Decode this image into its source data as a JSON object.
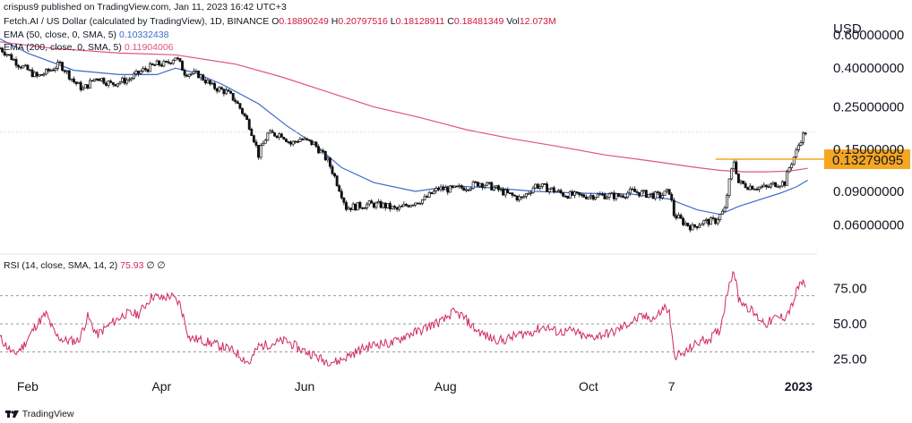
{
  "published_line": "crispus9 published on TradingView.com, Jan 11, 2023 16:42 UTC+3",
  "footer_brand": "TradingView",
  "symbol": {
    "name": "Fetch.AI / US Dollar (calculated by TradingView), 1D, BINANCE",
    "O_label": "O",
    "O": "0.18890249",
    "H_label": "H",
    "H": "0.20797516",
    "L_label": "L",
    "L": "0.18128911",
    "C_label": "C",
    "C": "0.18481349",
    "Vol_label": "Vol",
    "Vol": "12.073M"
  },
  "indicators": [
    {
      "label": "EMA (50, close, 0, SMA, 5)",
      "value": "0.10332438",
      "color": "#3a6bc9"
    },
    {
      "label": "EMA (200, close, 0, SMA, 5)",
      "value": "0.11904006",
      "color": "#e0557a"
    }
  ],
  "rsi_header": {
    "label": "RSI (14, close, SMA, 14, 2)",
    "value": "75.93",
    "extra1": "∅",
    "extra2": "∅"
  },
  "colors": {
    "up": "#26a69a",
    "down": "#ef5350",
    "candle": "#111111",
    "ema50": "#3a6bc9",
    "ema200": "#e0557a",
    "rsi": "#d02a62",
    "highlight": "#f5a623",
    "price_dot": "#cfcfcf"
  },
  "chart_data": [
    {
      "type": "candlestick",
      "title": "Fetch.AI / US Dollar, 1D, BINANCE",
      "yscale": "log",
      "currency": "USD",
      "ylim": [
        0.048,
        0.66
      ],
      "y_ticks": [
        {
          "value": 0.6,
          "label": "0.60000000"
        },
        {
          "value": 0.4,
          "label": "0.40000000"
        },
        {
          "value": 0.25,
          "label": "0.25000000"
        },
        {
          "value": 0.15,
          "label": "0.15000000"
        },
        {
          "value": 0.09,
          "label": "0.09000000"
        },
        {
          "value": 0.06,
          "label": "0.06000000"
        }
      ],
      "x_ticks": [
        {
          "x": 0,
          "label": "Feb",
          "bold": false
        },
        {
          "x": 58,
          "label": "Apr",
          "bold": false
        },
        {
          "x": 120,
          "label": "Jun",
          "bold": false
        },
        {
          "x": 181,
          "label": "Aug",
          "bold": false
        },
        {
          "x": 243,
          "label": "Oct",
          "bold": false
        },
        {
          "x": 279,
          "label": "7",
          "bold": false
        },
        {
          "x": 334,
          "label": "2023",
          "bold": true
        }
      ],
      "x_range": [
        -12,
        342
      ],
      "current_close": 0.18481349,
      "highlight_level": {
        "value": 0.13279095,
        "label": "0.13279095",
        "from_x": 298,
        "to_x": 346
      },
      "anchors": [
        [
          -12,
          0.51
        ],
        [
          -4,
          0.42
        ],
        [
          4,
          0.36
        ],
        [
          8,
          0.38
        ],
        [
          14,
          0.42
        ],
        [
          20,
          0.34
        ],
        [
          24,
          0.31
        ],
        [
          30,
          0.36
        ],
        [
          36,
          0.33
        ],
        [
          44,
          0.35
        ],
        [
          50,
          0.39
        ],
        [
          56,
          0.42
        ],
        [
          60,
          0.42
        ],
        [
          64,
          0.46
        ],
        [
          68,
          0.38
        ],
        [
          74,
          0.37
        ],
        [
          80,
          0.32
        ],
        [
          86,
          0.3
        ],
        [
          90,
          0.27
        ],
        [
          96,
          0.2
        ],
        [
          100,
          0.14
        ],
        [
          104,
          0.18
        ],
        [
          110,
          0.18
        ],
        [
          114,
          0.16
        ],
        [
          118,
          0.17
        ],
        [
          124,
          0.16
        ],
        [
          130,
          0.13
        ],
        [
          134,
          0.1
        ],
        [
          138,
          0.074
        ],
        [
          142,
          0.075
        ],
        [
          148,
          0.077
        ],
        [
          154,
          0.076
        ],
        [
          160,
          0.072
        ],
        [
          166,
          0.078
        ],
        [
          172,
          0.082
        ],
        [
          178,
          0.093
        ],
        [
          184,
          0.092
        ],
        [
          190,
          0.095
        ],
        [
          196,
          0.1
        ],
        [
          202,
          0.094
        ],
        [
          208,
          0.087
        ],
        [
          214,
          0.082
        ],
        [
          220,
          0.097
        ],
        [
          226,
          0.093
        ],
        [
          232,
          0.087
        ],
        [
          240,
          0.085
        ],
        [
          248,
          0.086
        ],
        [
          256,
          0.085
        ],
        [
          262,
          0.09
        ],
        [
          268,
          0.087
        ],
        [
          274,
          0.085
        ],
        [
          278,
          0.09
        ],
        [
          280,
          0.068
        ],
        [
          284,
          0.062
        ],
        [
          288,
          0.058
        ],
        [
          292,
          0.062
        ],
        [
          298,
          0.063
        ],
        [
          302,
          0.072
        ],
        [
          306,
          0.13
        ],
        [
          308,
          0.1
        ],
        [
          312,
          0.096
        ],
        [
          316,
          0.095
        ],
        [
          320,
          0.094
        ],
        [
          324,
          0.099
        ],
        [
          328,
          0.1
        ],
        [
          330,
          0.12
        ],
        [
          333,
          0.145
        ],
        [
          335,
          0.17
        ],
        [
          337,
          0.185
        ]
      ],
      "ema50": [
        [
          -12,
          0.57
        ],
        [
          0,
          0.48
        ],
        [
          20,
          0.39
        ],
        [
          40,
          0.37
        ],
        [
          56,
          0.37
        ],
        [
          64,
          0.4
        ],
        [
          72,
          0.38
        ],
        [
          84,
          0.33
        ],
        [
          100,
          0.26
        ],
        [
          112,
          0.2
        ],
        [
          124,
          0.16
        ],
        [
          136,
          0.12
        ],
        [
          150,
          0.1
        ],
        [
          168,
          0.09
        ],
        [
          184,
          0.096
        ],
        [
          200,
          0.094
        ],
        [
          220,
          0.09
        ],
        [
          240,
          0.088
        ],
        [
          262,
          0.087
        ],
        [
          278,
          0.082
        ],
        [
          290,
          0.072
        ],
        [
          300,
          0.068
        ],
        [
          308,
          0.075
        ],
        [
          318,
          0.082
        ],
        [
          326,
          0.088
        ],
        [
          333,
          0.095
        ],
        [
          338,
          0.103
        ]
      ],
      "ema200": [
        [
          -12,
          0.55
        ],
        [
          10,
          0.51
        ],
        [
          40,
          0.48
        ],
        [
          64,
          0.47
        ],
        [
          90,
          0.42
        ],
        [
          110,
          0.36
        ],
        [
          130,
          0.3
        ],
        [
          150,
          0.25
        ],
        [
          170,
          0.22
        ],
        [
          190,
          0.19
        ],
        [
          210,
          0.17
        ],
        [
          230,
          0.155
        ],
        [
          250,
          0.14
        ],
        [
          270,
          0.13
        ],
        [
          290,
          0.12
        ],
        [
          300,
          0.116
        ],
        [
          310,
          0.114
        ],
        [
          320,
          0.114
        ],
        [
          330,
          0.115
        ],
        [
          338,
          0.119
        ]
      ]
    },
    {
      "type": "line",
      "title": "RSI (14, close, SMA, 14, 2)",
      "ylim": [
        17,
        92
      ],
      "y_ticks": [
        {
          "value": 75,
          "label": "75.00"
        },
        {
          "value": 50,
          "label": "50.00"
        },
        {
          "value": 25,
          "label": "25.00"
        }
      ],
      "bands": [
        70,
        50,
        30
      ],
      "last_value": 75.93,
      "anchors": [
        [
          -12,
          40
        ],
        [
          -6,
          28
        ],
        [
          -2,
          34
        ],
        [
          4,
          50
        ],
        [
          8,
          57
        ],
        [
          12,
          42
        ],
        [
          16,
          38
        ],
        [
          22,
          38
        ],
        [
          26,
          55
        ],
        [
          30,
          42
        ],
        [
          36,
          50
        ],
        [
          42,
          57
        ],
        [
          48,
          57
        ],
        [
          54,
          70
        ],
        [
          58,
          68
        ],
        [
          62,
          70
        ],
        [
          66,
          64
        ],
        [
          70,
          40
        ],
        [
          76,
          38
        ],
        [
          84,
          34
        ],
        [
          90,
          30
        ],
        [
          96,
          22
        ],
        [
          100,
          34
        ],
        [
          106,
          36
        ],
        [
          112,
          38
        ],
        [
          118,
          32
        ],
        [
          124,
          28
        ],
        [
          128,
          24
        ],
        [
          134,
          23
        ],
        [
          140,
          28
        ],
        [
          146,
          33
        ],
        [
          152,
          36
        ],
        [
          158,
          36
        ],
        [
          164,
          42
        ],
        [
          170,
          45
        ],
        [
          176,
          50
        ],
        [
          180,
          52
        ],
        [
          184,
          58
        ],
        [
          188,
          56
        ],
        [
          194,
          46
        ],
        [
          200,
          40
        ],
        [
          206,
          38
        ],
        [
          212,
          42
        ],
        [
          218,
          44
        ],
        [
          224,
          48
        ],
        [
          230,
          44
        ],
        [
          236,
          45
        ],
        [
          242,
          40
        ],
        [
          248,
          42
        ],
        [
          254,
          44
        ],
        [
          260,
          50
        ],
        [
          266,
          55
        ],
        [
          272,
          54
        ],
        [
          276,
          62
        ],
        [
          278,
          58
        ],
        [
          280,
          28
        ],
        [
          284,
          28
        ],
        [
          288,
          34
        ],
        [
          292,
          38
        ],
        [
          296,
          40
        ],
        [
          300,
          46
        ],
        [
          304,
          80
        ],
        [
          306,
          88
        ],
        [
          308,
          68
        ],
        [
          312,
          62
        ],
        [
          316,
          55
        ],
        [
          320,
          50
        ],
        [
          324,
          54
        ],
        [
          328,
          55
        ],
        [
          331,
          62
        ],
        [
          333,
          72
        ],
        [
          335,
          80
        ],
        [
          337,
          76
        ]
      ]
    }
  ]
}
